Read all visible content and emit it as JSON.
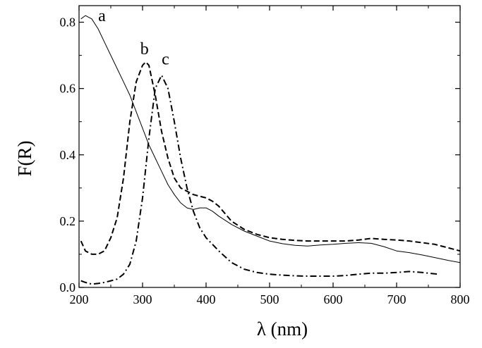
{
  "chart_data": {
    "type": "line",
    "xlabel": "λ (nm)",
    "ylabel": "F(R)",
    "xlim": [
      200,
      800
    ],
    "ylim": [
      0,
      0.85
    ],
    "x_ticks": [
      200,
      300,
      400,
      500,
      600,
      700,
      800
    ],
    "x_tick_labels": [
      "200",
      "300",
      "400",
      "500",
      "600",
      "700",
      "800"
    ],
    "y_ticks": [
      0.0,
      0.2,
      0.4,
      0.6,
      0.8
    ],
    "y_tick_labels": [
      "0.0",
      "0.2",
      "0.4",
      "0.6",
      "0.8"
    ],
    "grid": false,
    "legend": "none",
    "series": [
      {
        "name": "a",
        "style": "solid",
        "color": "#000000",
        "x": [
          203,
          210,
          220,
          230,
          240,
          250,
          260,
          270,
          280,
          290,
          300,
          310,
          320,
          330,
          340,
          350,
          360,
          370,
          380,
          390,
          400,
          410,
          420,
          440,
          460,
          480,
          500,
          520,
          540,
          560,
          580,
          600,
          620,
          640,
          660,
          680,
          700,
          720,
          740,
          760,
          780,
          800
        ],
        "y": [
          0.81,
          0.82,
          0.81,
          0.78,
          0.74,
          0.7,
          0.66,
          0.62,
          0.58,
          0.53,
          0.48,
          0.43,
          0.39,
          0.35,
          0.31,
          0.28,
          0.255,
          0.24,
          0.235,
          0.24,
          0.24,
          0.23,
          0.215,
          0.19,
          0.17,
          0.155,
          0.14,
          0.132,
          0.127,
          0.125,
          0.128,
          0.13,
          0.133,
          0.135,
          0.133,
          0.123,
          0.11,
          0.105,
          0.098,
          0.09,
          0.082,
          0.075
        ]
      },
      {
        "name": "b",
        "style": "dashed",
        "color": "#000000",
        "x": [
          203,
          210,
          220,
          230,
          240,
          250,
          260,
          270,
          280,
          290,
          300,
          305,
          310,
          320,
          330,
          340,
          350,
          360,
          370,
          380,
          390,
          400,
          410,
          420,
          440,
          460,
          480,
          500,
          520,
          540,
          560,
          580,
          600,
          620,
          640,
          660,
          680,
          700,
          720,
          740,
          760,
          780,
          800
        ],
        "y": [
          0.14,
          0.11,
          0.1,
          0.1,
          0.11,
          0.15,
          0.21,
          0.33,
          0.5,
          0.62,
          0.67,
          0.68,
          0.67,
          0.58,
          0.47,
          0.39,
          0.33,
          0.3,
          0.29,
          0.28,
          0.275,
          0.27,
          0.26,
          0.245,
          0.2,
          0.175,
          0.16,
          0.15,
          0.145,
          0.142,
          0.14,
          0.14,
          0.14,
          0.14,
          0.143,
          0.148,
          0.145,
          0.143,
          0.14,
          0.135,
          0.13,
          0.12,
          0.11
        ]
      },
      {
        "name": "c",
        "style": "dashdot",
        "color": "#000000",
        "x": [
          203,
          210,
          220,
          230,
          240,
          250,
          260,
          270,
          280,
          290,
          300,
          310,
          320,
          330,
          340,
          350,
          360,
          370,
          380,
          390,
          400,
          420,
          440,
          460,
          480,
          500,
          520,
          540,
          560,
          580,
          600,
          620,
          640,
          660,
          680,
          700,
          720,
          740,
          765
        ],
        "y": [
          0.02,
          0.015,
          0.01,
          0.012,
          0.015,
          0.02,
          0.025,
          0.04,
          0.07,
          0.14,
          0.27,
          0.45,
          0.6,
          0.64,
          0.6,
          0.5,
          0.39,
          0.3,
          0.23,
          0.18,
          0.15,
          0.11,
          0.075,
          0.055,
          0.045,
          0.04,
          0.037,
          0.035,
          0.034,
          0.034,
          0.034,
          0.036,
          0.04,
          0.043,
          0.043,
          0.045,
          0.048,
          0.045,
          0.04
        ]
      }
    ],
    "annotations": [
      {
        "text": "a",
        "x": 236,
        "y": 0.82
      },
      {
        "text": "b",
        "x": 303,
        "y": 0.72
      },
      {
        "text": "c",
        "x": 336,
        "y": 0.69
      }
    ]
  }
}
